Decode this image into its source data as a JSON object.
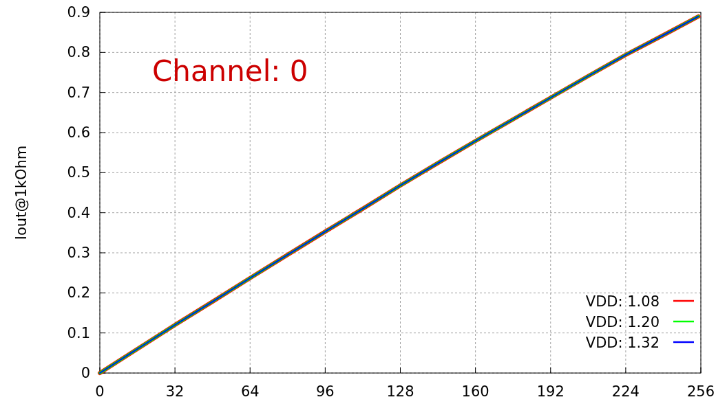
{
  "chart_data": {
    "type": "line",
    "ylabel": "Iout@1kOhm",
    "annotations": [
      "Channel: 0"
    ],
    "x": [
      0,
      16,
      32,
      48,
      64,
      80,
      96,
      112,
      128,
      144,
      160,
      176,
      192,
      208,
      224,
      240,
      255
    ],
    "series": [
      {
        "name": "VDD: 1.08",
        "color": "#ff0000",
        "values": [
          0,
          0.06,
          0.12,
          0.178,
          0.237,
          0.295,
          0.353,
          0.41,
          0.468,
          0.524,
          0.579,
          0.633,
          0.687,
          0.741,
          0.794,
          0.843,
          0.89
        ]
      },
      {
        "name": "VDD: 1.20",
        "color": "#00ff00",
        "values": [
          0,
          0.06,
          0.12,
          0.178,
          0.237,
          0.295,
          0.353,
          0.41,
          0.468,
          0.524,
          0.579,
          0.633,
          0.687,
          0.741,
          0.794,
          0.843,
          0.89
        ]
      },
      {
        "name": "VDD: 1.32",
        "color": "#0000ff",
        "values": [
          0,
          0.06,
          0.12,
          0.178,
          0.237,
          0.295,
          0.353,
          0.41,
          0.468,
          0.524,
          0.579,
          0.633,
          0.687,
          0.741,
          0.794,
          0.843,
          0.89
        ]
      }
    ],
    "xlim": [
      0,
      256
    ],
    "xticks": [
      0,
      32,
      64,
      96,
      128,
      160,
      192,
      224,
      256
    ],
    "ylim": [
      0,
      0.9
    ],
    "yticks": [
      0,
      0.1,
      0.2,
      0.3,
      0.4,
      0.5,
      0.6,
      0.7,
      0.8,
      0.9
    ],
    "grid": true,
    "legend": "bottom right",
    "marker": "none",
    "line_style": "solid"
  }
}
